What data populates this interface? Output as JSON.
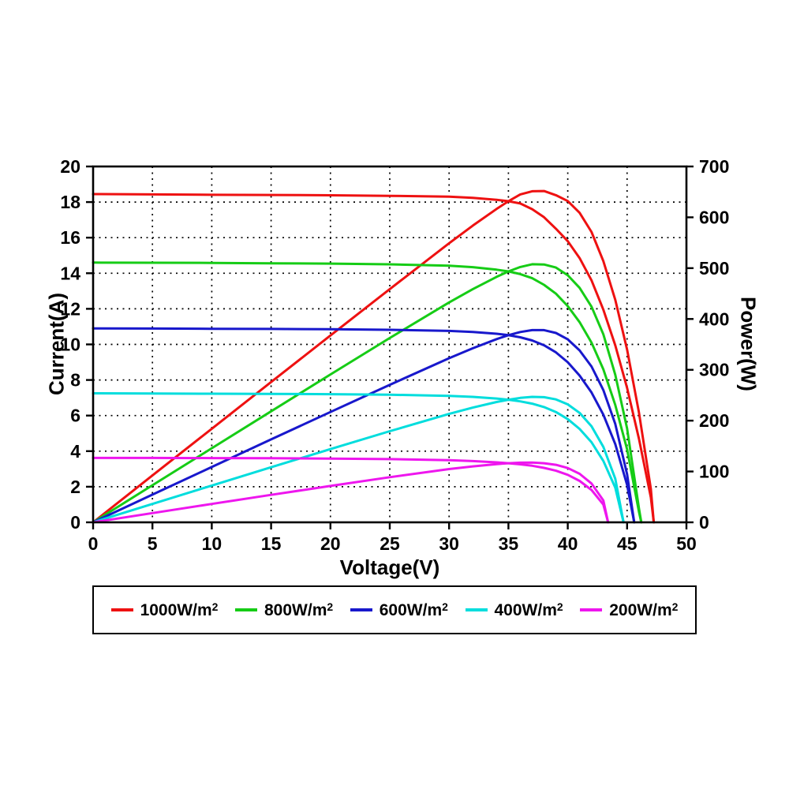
{
  "chart_data": {
    "type": "line",
    "description": "Solar PV module I-V and P-V characteristic curves at five irradiance levels; each color has two curves: current vs voltage (left axis) and power = V * I (right axis)",
    "xlabel": "Voltage(V)",
    "ylabel_left": "Current(A)",
    "ylabel_right": "Power(W)",
    "xlim": [
      0,
      50
    ],
    "ylim_left": [
      0,
      20
    ],
    "ylim_right": [
      0,
      700
    ],
    "x_ticks": [
      0,
      5,
      10,
      15,
      20,
      25,
      30,
      35,
      40,
      45,
      50
    ],
    "y_left_ticks": [
      0,
      2,
      4,
      6,
      8,
      10,
      12,
      14,
      16,
      18,
      20
    ],
    "y_right_ticks": [
      0,
      100,
      200,
      300,
      400,
      500,
      600,
      700
    ],
    "grid": "dotted",
    "legend_position": "bottom-box",
    "series": [
      {
        "name": "1000W/m",
        "sup": "2",
        "irradiance_w_m2": 1000,
        "color": "#ee1111",
        "isc_a": 18.45,
        "voc_v": 47.25,
        "pmax_w": 650,
        "vmp_v": 37.6,
        "iv_points": [
          [
            0,
            18.45
          ],
          [
            5,
            18.43
          ],
          [
            10,
            18.41
          ],
          [
            15,
            18.4
          ],
          [
            20,
            18.38
          ],
          [
            25,
            18.35
          ],
          [
            30,
            18.3
          ],
          [
            32,
            18.24
          ],
          [
            34,
            18.13
          ],
          [
            35,
            18.05
          ],
          [
            36,
            17.92
          ],
          [
            37,
            17.6
          ],
          [
            38,
            17.15
          ],
          [
            39,
            16.5
          ],
          [
            40,
            15.8
          ],
          [
            41,
            14.85
          ],
          [
            42,
            13.6
          ],
          [
            43,
            11.95
          ],
          [
            44,
            9.95
          ],
          [
            45,
            7.55
          ],
          [
            46,
            4.7
          ],
          [
            47,
            1.4
          ],
          [
            47.25,
            0
          ]
        ]
      },
      {
        "name": "800W/m",
        "sup": "2",
        "irradiance_w_m2": 800,
        "color": "#16cc16",
        "isc_a": 14.6,
        "voc_v": 46.2,
        "pmax_w": 507,
        "vmp_v": 37.5,
        "iv_points": [
          [
            0,
            14.6
          ],
          [
            5,
            14.59
          ],
          [
            10,
            14.58
          ],
          [
            15,
            14.56
          ],
          [
            20,
            14.54
          ],
          [
            25,
            14.5
          ],
          [
            30,
            14.42
          ],
          [
            32,
            14.34
          ],
          [
            34,
            14.2
          ],
          [
            35,
            14.1
          ],
          [
            36,
            13.95
          ],
          [
            37,
            13.72
          ],
          [
            38,
            13.35
          ],
          [
            39,
            12.85
          ],
          [
            40,
            12.15
          ],
          [
            41,
            11.25
          ],
          [
            42,
            10.1
          ],
          [
            43,
            8.6
          ],
          [
            44,
            6.6
          ],
          [
            45,
            4.1
          ],
          [
            46,
            0.6
          ],
          [
            46.2,
            0
          ]
        ]
      },
      {
        "name": "600W/m",
        "sup": "2",
        "irradiance_w_m2": 600,
        "color": "#1818cc",
        "isc_a": 10.9,
        "voc_v": 45.6,
        "pmax_w": 380,
        "vmp_v": 37.5,
        "iv_points": [
          [
            0,
            10.9
          ],
          [
            5,
            10.89
          ],
          [
            10,
            10.88
          ],
          [
            15,
            10.87
          ],
          [
            20,
            10.85
          ],
          [
            25,
            10.82
          ],
          [
            30,
            10.76
          ],
          [
            32,
            10.7
          ],
          [
            34,
            10.6
          ],
          [
            35,
            10.52
          ],
          [
            36,
            10.4
          ],
          [
            37,
            10.22
          ],
          [
            38,
            9.95
          ],
          [
            39,
            9.55
          ],
          [
            40,
            9.0
          ],
          [
            41,
            8.25
          ],
          [
            42,
            7.3
          ],
          [
            43,
            6.05
          ],
          [
            44,
            4.4
          ],
          [
            45,
            2.1
          ],
          [
            45.6,
            0
          ]
        ]
      },
      {
        "name": "400W/m",
        "sup": "2",
        "irradiance_w_m2": 400,
        "color": "#00dddd",
        "isc_a": 7.25,
        "voc_v": 44.7,
        "pmax_w": 250,
        "vmp_v": 37.2,
        "iv_points": [
          [
            0,
            7.25
          ],
          [
            5,
            7.24
          ],
          [
            10,
            7.23
          ],
          [
            15,
            7.22
          ],
          [
            20,
            7.2
          ],
          [
            25,
            7.17
          ],
          [
            30,
            7.11
          ],
          [
            32,
            7.05
          ],
          [
            34,
            6.96
          ],
          [
            35,
            6.89
          ],
          [
            36,
            6.8
          ],
          [
            37,
            6.67
          ],
          [
            38,
            6.48
          ],
          [
            39,
            6.2
          ],
          [
            40,
            5.8
          ],
          [
            41,
            5.25
          ],
          [
            42,
            4.5
          ],
          [
            43,
            3.45
          ],
          [
            44,
            1.95
          ],
          [
            44.7,
            0
          ]
        ]
      },
      {
        "name": "200W/m",
        "sup": "2",
        "irradiance_w_m2": 200,
        "color": "#ee16ee",
        "isc_a": 3.62,
        "voc_v": 43.4,
        "pmax_w": 120,
        "vmp_v": 36.5,
        "iv_points": [
          [
            0,
            3.62
          ],
          [
            5,
            3.62
          ],
          [
            10,
            3.61
          ],
          [
            15,
            3.6
          ],
          [
            20,
            3.58
          ],
          [
            25,
            3.55
          ],
          [
            30,
            3.49
          ],
          [
            32,
            3.44
          ],
          [
            34,
            3.37
          ],
          [
            35,
            3.32
          ],
          [
            36,
            3.26
          ],
          [
            37,
            3.18
          ],
          [
            38,
            3.06
          ],
          [
            39,
            2.9
          ],
          [
            40,
            2.67
          ],
          [
            41,
            2.33
          ],
          [
            42,
            1.82
          ],
          [
            43,
            1.0
          ],
          [
            43.4,
            0
          ]
        ]
      }
    ]
  }
}
